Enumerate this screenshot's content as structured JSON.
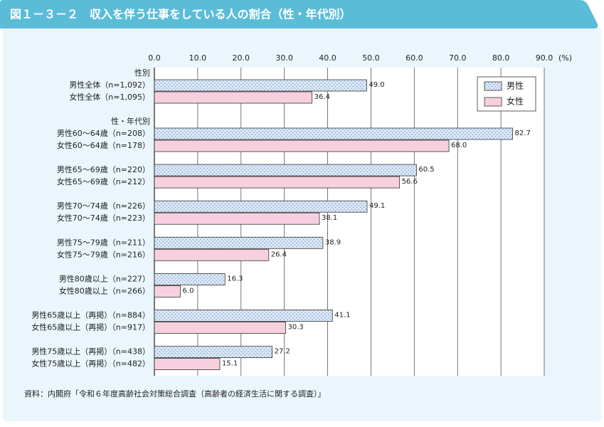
{
  "chart_data": {
    "type": "bar",
    "orientation": "horizontal",
    "title": "図１－３－２　収入を伴う仕事をしている人の割合（性・年代別）",
    "source": "資料：内閣府「令和６年度高齢社会対策総合調査（高齢者の経済生活に関する調査）」",
    "x_unit": "(%)",
    "category_groups": [
      "性別",
      "性・年代別"
    ],
    "categories": [
      "男性全体（n=1,092）",
      "女性全体（n=1,095）",
      "男性60～64歳（n=208）",
      "女性60～64歳（n=178）",
      "男性65～69歳（n=220）",
      "女性65～69歳（n=212）",
      "男性70～74歳（n=226）",
      "女性70～74歳（n=223）",
      "男性75～79歳（n=211）",
      "女性75～79歳（n=216）",
      "男性80歳以上（n=227）",
      "女性80歳以上（n=266）",
      "男性65歳以上（再掲）（n=884）",
      "女性65歳以上（再掲）（n=917）",
      "男性75歳以上（再掲）（n=438）",
      "女性75歳以上（再掲）（n=482）"
    ],
    "series": [
      {
        "name": "男性",
        "color": "#dce8f7",
        "pattern": "dots",
        "values": [
          49,
          null,
          82.7,
          null,
          60.5,
          null,
          49.1,
          null,
          38.9,
          null,
          16.3,
          null,
          41.1,
          null,
          27.2,
          null
        ],
        "value_labels": [
          "49.0",
          null,
          "82.7",
          null,
          "60.5",
          null,
          "49.1",
          null,
          "38.9",
          null,
          "16.3",
          null,
          "41.1",
          null,
          "27.2",
          null
        ]
      },
      {
        "name": "女性",
        "color": "#f7d0df",
        "values": [
          null,
          36.4,
          null,
          68,
          null,
          56.6,
          null,
          38.1,
          null,
          26.4,
          null,
          6,
          null,
          30.3,
          null,
          15.1
        ],
        "value_labels": [
          null,
          "36.4",
          null,
          "68.0",
          null,
          "56.6",
          null,
          "38.1",
          null,
          "26.4",
          null,
          "6.0",
          null,
          "30.3",
          null,
          "15.1"
        ]
      }
    ],
    "xlim": [
      0,
      90
    ],
    "xticks": [
      {
        "value": 0,
        "label": "0.0"
      },
      {
        "value": 10,
        "label": "10.0"
      },
      {
        "value": 20,
        "label": "20.0"
      },
      {
        "value": 30,
        "label": "30.0"
      },
      {
        "value": 40,
        "label": "40.0"
      },
      {
        "value": 50,
        "label": "50.0"
      },
      {
        "value": 60,
        "label": "60.0"
      },
      {
        "value": 70,
        "label": "70.0"
      },
      {
        "value": 80,
        "label": "80.0"
      },
      {
        "value": 90,
        "label": "90.0"
      }
    ],
    "grid": true,
    "legend": "upper right"
  }
}
